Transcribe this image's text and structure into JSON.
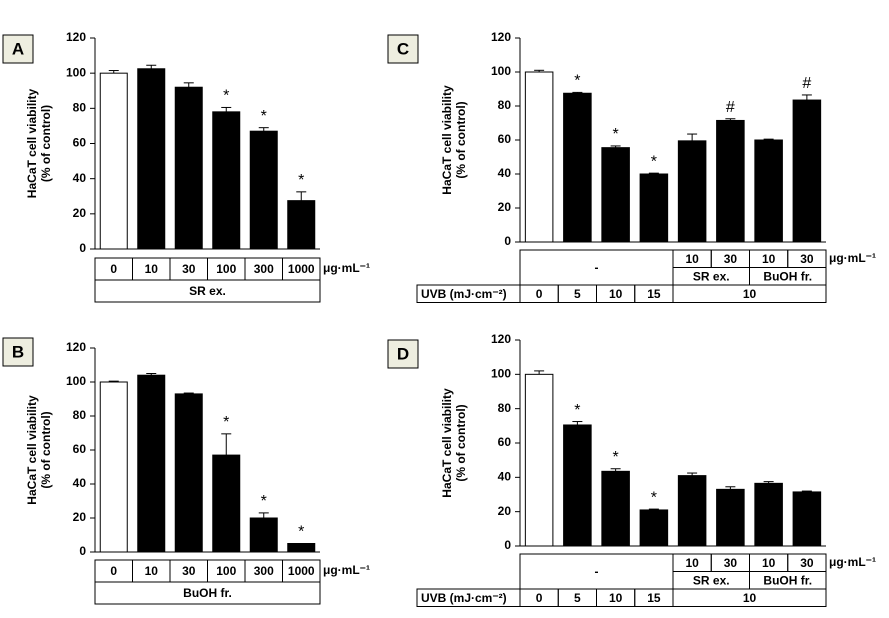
{
  "chart_data": [
    {
      "type": "bar",
      "panel": "A",
      "ylabel": [
        "HaCaT cell viability",
        "(% of control)"
      ],
      "categories": [
        "0",
        "10",
        "30",
        "100",
        "300",
        "1000"
      ],
      "values": [
        100,
        102.5,
        92,
        78,
        67,
        27.5
      ],
      "errors": [
        1.5,
        2,
        2.5,
        2.5,
        2,
        5
      ],
      "markers": [
        null,
        null,
        null,
        "*",
        "*",
        "*"
      ],
      "colors": [
        "#ffffff",
        "#000000",
        "#000000",
        "#000000",
        "#000000",
        "#000000"
      ],
      "ylim": [
        0,
        120
      ],
      "yticks": [
        0,
        20,
        40,
        60,
        80,
        100,
        120
      ],
      "table": {
        "rows": [
          {
            "cells": [
              "0",
              "10",
              "30",
              "100",
              "300",
              "1000"
            ],
            "unit": "μg·mL⁻¹"
          },
          {
            "cells": [
              {
                "text": "SR ex.",
                "span": 6
              }
            ]
          }
        ]
      }
    },
    {
      "type": "bar",
      "panel": "B",
      "ylabel": [
        "HaCaT cell viability",
        "(% of control)"
      ],
      "categories": [
        "0",
        "10",
        "30",
        "100",
        "300",
        "1000"
      ],
      "values": [
        100,
        104,
        93,
        57,
        20,
        5
      ],
      "errors": [
        0.5,
        1,
        0.5,
        12.5,
        3,
        0
      ],
      "markers": [
        null,
        null,
        null,
        "*",
        "*",
        "*"
      ],
      "colors": [
        "#ffffff",
        "#000000",
        "#000000",
        "#000000",
        "#000000",
        "#000000"
      ],
      "ylim": [
        0,
        120
      ],
      "yticks": [
        0,
        20,
        40,
        60,
        80,
        100,
        120
      ],
      "table": {
        "rows": [
          {
            "cells": [
              "0",
              "10",
              "30",
              "100",
              "300",
              "1000"
            ],
            "unit": "μg·mL⁻¹"
          },
          {
            "cells": [
              {
                "text": "BuOH fr.",
                "span": 6
              }
            ]
          }
        ]
      }
    },
    {
      "type": "bar",
      "panel": "C",
      "ylabel": [
        "HaCaT cell viability",
        "(% of control)"
      ],
      "categories": [
        null,
        null,
        null,
        null,
        null,
        null,
        null,
        null
      ],
      "values": [
        100,
        87.5,
        55.5,
        40,
        59.5,
        71.5,
        60,
        83.5
      ],
      "errors": [
        1,
        0.5,
        1,
        0.5,
        4,
        1,
        0.5,
        3
      ],
      "markers": [
        null,
        "*",
        "*",
        "*",
        null,
        "#",
        null,
        "#"
      ],
      "colors": [
        "#ffffff",
        "#000000",
        "#000000",
        "#000000",
        "#000000",
        "#000000",
        "#000000",
        "#000000"
      ],
      "ylim": [
        0,
        120
      ],
      "yticks": [
        0,
        20,
        40,
        60,
        80,
        100,
        120
      ],
      "table": {
        "rows": [
          {
            "cells": [
              {
                "text": "-",
                "span": 4,
                "rowspan": 2
              },
              "10",
              "30",
              "10",
              "30"
            ],
            "unit": "μg·mL⁻¹"
          },
          {
            "cells": [
              {
                "text": "SR ex.",
                "span": 2
              },
              {
                "text": "BuOH fr.",
                "span": 2
              }
            ]
          },
          {
            "label": "UVB (mJ·cm⁻²)",
            "cells": [
              "0",
              "5",
              "10",
              "15",
              {
                "text": "10",
                "span": 4
              }
            ]
          }
        ]
      }
    },
    {
      "type": "bar",
      "panel": "D",
      "ylabel": [
        "HaCaT cell viability",
        "(% of control)"
      ],
      "categories": [
        null,
        null,
        null,
        null,
        null,
        null,
        null,
        null
      ],
      "values": [
        100,
        70.5,
        43.5,
        21,
        41,
        33,
        36.5,
        31.5
      ],
      "errors": [
        2,
        2,
        1.5,
        0.5,
        1.5,
        1.5,
        1,
        0.5
      ],
      "markers": [
        null,
        "*",
        "*",
        "*",
        null,
        null,
        null,
        null
      ],
      "colors": [
        "#ffffff",
        "#000000",
        "#000000",
        "#000000",
        "#000000",
        "#000000",
        "#000000",
        "#000000"
      ],
      "ylim": [
        0,
        120
      ],
      "yticks": [
        0,
        20,
        40,
        60,
        80,
        100,
        120
      ],
      "table": {
        "rows": [
          {
            "cells": [
              {
                "text": "-",
                "span": 4,
                "rowspan": 2
              },
              "10",
              "30",
              "10",
              "30"
            ],
            "unit": "μg·mL⁻¹"
          },
          {
            "cells": [
              {
                "text": "SR ex.",
                "span": 2
              },
              {
                "text": "BuOH fr.",
                "span": 2
              }
            ]
          },
          {
            "label": "UVB (mJ·cm⁻²)",
            "cells": [
              "0",
              "5",
              "10",
              "15",
              {
                "text": "10",
                "span": 4
              }
            ]
          }
        ]
      }
    }
  ]
}
